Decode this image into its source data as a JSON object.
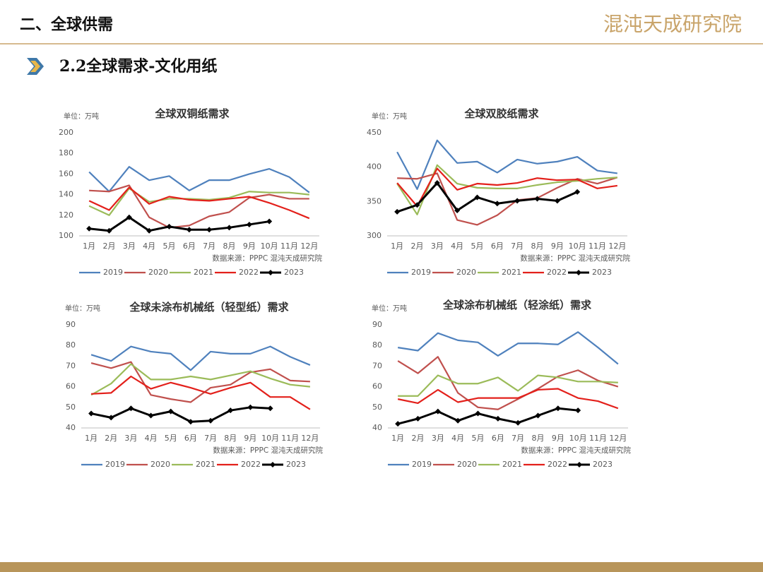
{
  "header": {
    "title": "二、全球供需",
    "logo": "混沌天成研究院",
    "subtitle": "2.2全球需求-文化用纸"
  },
  "chart_data": [
    {
      "type": "line",
      "title": "全球双铜纸需求",
      "unit_label": "单位：万吨",
      "source": "数据来源：PPPC 混沌天成研究院",
      "categories": [
        "1月",
        "2月",
        "3月",
        "4月",
        "5月",
        "6月",
        "7月",
        "8月",
        "9月",
        "10月",
        "11月",
        "12月"
      ],
      "ylim": [
        100,
        200
      ],
      "yticks": [
        100,
        120,
        140,
        160,
        180,
        200
      ],
      "grid": false,
      "series": [
        {
          "name": "2019",
          "color": "#4f81bd",
          "values": [
            162,
            143,
            167,
            154,
            158,
            144,
            154,
            154,
            160,
            165,
            157,
            142
          ]
        },
        {
          "name": "2020",
          "color": "#c0504d",
          "values": [
            144,
            143,
            149,
            118,
            108,
            110,
            119,
            123,
            137,
            140,
            136,
            136
          ]
        },
        {
          "name": "2021",
          "color": "#9bbb59",
          "values": [
            129,
            120,
            146,
            133,
            136,
            136,
            135,
            137,
            143,
            142,
            142,
            140
          ]
        },
        {
          "name": "2022",
          "color": "#e3201b",
          "values": [
            134,
            125,
            147,
            131,
            138,
            135,
            134,
            136,
            138,
            132,
            125,
            117
          ]
        },
        {
          "name": "2023",
          "color": "#000000",
          "marker": "diamond",
          "values": [
            107,
            105,
            118,
            105,
            109,
            106,
            106,
            108,
            111,
            114,
            null,
            null
          ]
        }
      ]
    },
    {
      "type": "line",
      "title": "全球双胶纸需求",
      "unit_label": "单位：万吨",
      "source": "数据来源：PPPC 混沌天成研究院",
      "categories": [
        "1月",
        "2月",
        "3月",
        "4月",
        "5月",
        "6月",
        "7月",
        "8月",
        "9月",
        "10月",
        "11月",
        "12月"
      ],
      "ylim": [
        300,
        450
      ],
      "yticks": [
        300,
        350,
        400,
        450
      ],
      "grid": false,
      "series": [
        {
          "name": "2019",
          "color": "#4f81bd",
          "values": [
            422,
            368,
            439,
            406,
            408,
            392,
            411,
            405,
            408,
            415,
            395,
            391
          ]
        },
        {
          "name": "2020",
          "color": "#c0504d",
          "values": [
            384,
            383,
            391,
            323,
            316,
            330,
            352,
            355,
            370,
            383,
            376,
            385
          ]
        },
        {
          "name": "2021",
          "color": "#9bbb59",
          "values": [
            376,
            331,
            403,
            376,
            370,
            369,
            369,
            374,
            378,
            380,
            383,
            385
          ]
        },
        {
          "name": "2022",
          "color": "#e3201b",
          "values": [
            377,
            343,
            398,
            367,
            376,
            374,
            377,
            384,
            381,
            382,
            369,
            373
          ]
        },
        {
          "name": "2023",
          "color": "#000000",
          "marker": "diamond",
          "values": [
            335,
            345,
            377,
            337,
            356,
            347,
            351,
            354,
            351,
            364,
            null,
            null
          ]
        }
      ]
    },
    {
      "type": "line",
      "title": "全球未涂布机械纸（轻型纸）需求",
      "unit_label": "单位：万吨",
      "source": "数据来源：PPPC 混沌天成研究院",
      "categories": [
        "1月",
        "2月",
        "3月",
        "4月",
        "5月",
        "6月",
        "7月",
        "8月",
        "9月",
        "10月",
        "11月",
        "12月"
      ],
      "ylim": [
        40,
        90
      ],
      "yticks": [
        40,
        50,
        60,
        70,
        80,
        90
      ],
      "grid": false,
      "series": [
        {
          "name": "2019",
          "color": "#4f81bd",
          "values": [
            75.5,
            72.5,
            79.5,
            77,
            76,
            68,
            77,
            76,
            76,
            79.5,
            74.5,
            70.5
          ]
        },
        {
          "name": "2020",
          "color": "#c0504d",
          "values": [
            71.5,
            69,
            72,
            56,
            54,
            52.5,
            59.5,
            61,
            67,
            68.5,
            63,
            62.5
          ]
        },
        {
          "name": "2021",
          "color": "#9bbb59",
          "values": [
            56,
            61.5,
            71,
            63.5,
            63.5,
            65,
            63.5,
            65.5,
            67.5,
            64,
            61,
            60
          ]
        },
        {
          "name": "2022",
          "color": "#e3201b",
          "values": [
            56.5,
            57,
            65,
            59,
            62,
            59.5,
            56.5,
            59.5,
            62,
            55,
            55,
            49
          ]
        },
        {
          "name": "2023",
          "color": "#000000",
          "marker": "diamond",
          "values": [
            47,
            45,
            49.5,
            46,
            48,
            43,
            43.5,
            48.5,
            50,
            49.5,
            null,
            null
          ]
        }
      ]
    },
    {
      "type": "line",
      "title": "全球涂布机械纸（轻涂纸）需求",
      "unit_label": "单位：万吨",
      "source": "数据来源：PPPC 混沌天成研究院",
      "categories": [
        "1月",
        "2月",
        "3月",
        "4月",
        "5月",
        "6月",
        "7月",
        "8月",
        "9月",
        "10月",
        "11月",
        "12月"
      ],
      "ylim": [
        40,
        90
      ],
      "yticks": [
        40,
        50,
        60,
        70,
        80,
        90
      ],
      "grid": false,
      "series": [
        {
          "name": "2019",
          "color": "#4f81bd",
          "values": [
            79,
            77.5,
            86,
            82.5,
            81.5,
            75,
            81,
            81,
            80.5,
            86.5,
            79,
            71
          ]
        },
        {
          "name": "2020",
          "color": "#c0504d",
          "values": [
            72.5,
            66.5,
            74.5,
            57,
            50,
            49,
            54,
            59,
            65,
            68,
            63,
            60
          ]
        },
        {
          "name": "2021",
          "color": "#9bbb59",
          "values": [
            55.5,
            55.5,
            65.5,
            61.5,
            61.5,
            64.5,
            58,
            65.5,
            64.5,
            62.5,
            62.5,
            62
          ]
        },
        {
          "name": "2022",
          "color": "#e3201b",
          "values": [
            54,
            52,
            58.5,
            52.5,
            54.5,
            54.5,
            54.5,
            58.5,
            59,
            54.5,
            53,
            49.5
          ]
        },
        {
          "name": "2023",
          "color": "#000000",
          "marker": "diamond",
          "values": [
            42,
            44.5,
            48,
            43.5,
            47,
            44.5,
            42.5,
            46,
            49.5,
            48.5,
            null,
            null
          ]
        }
      ]
    }
  ]
}
